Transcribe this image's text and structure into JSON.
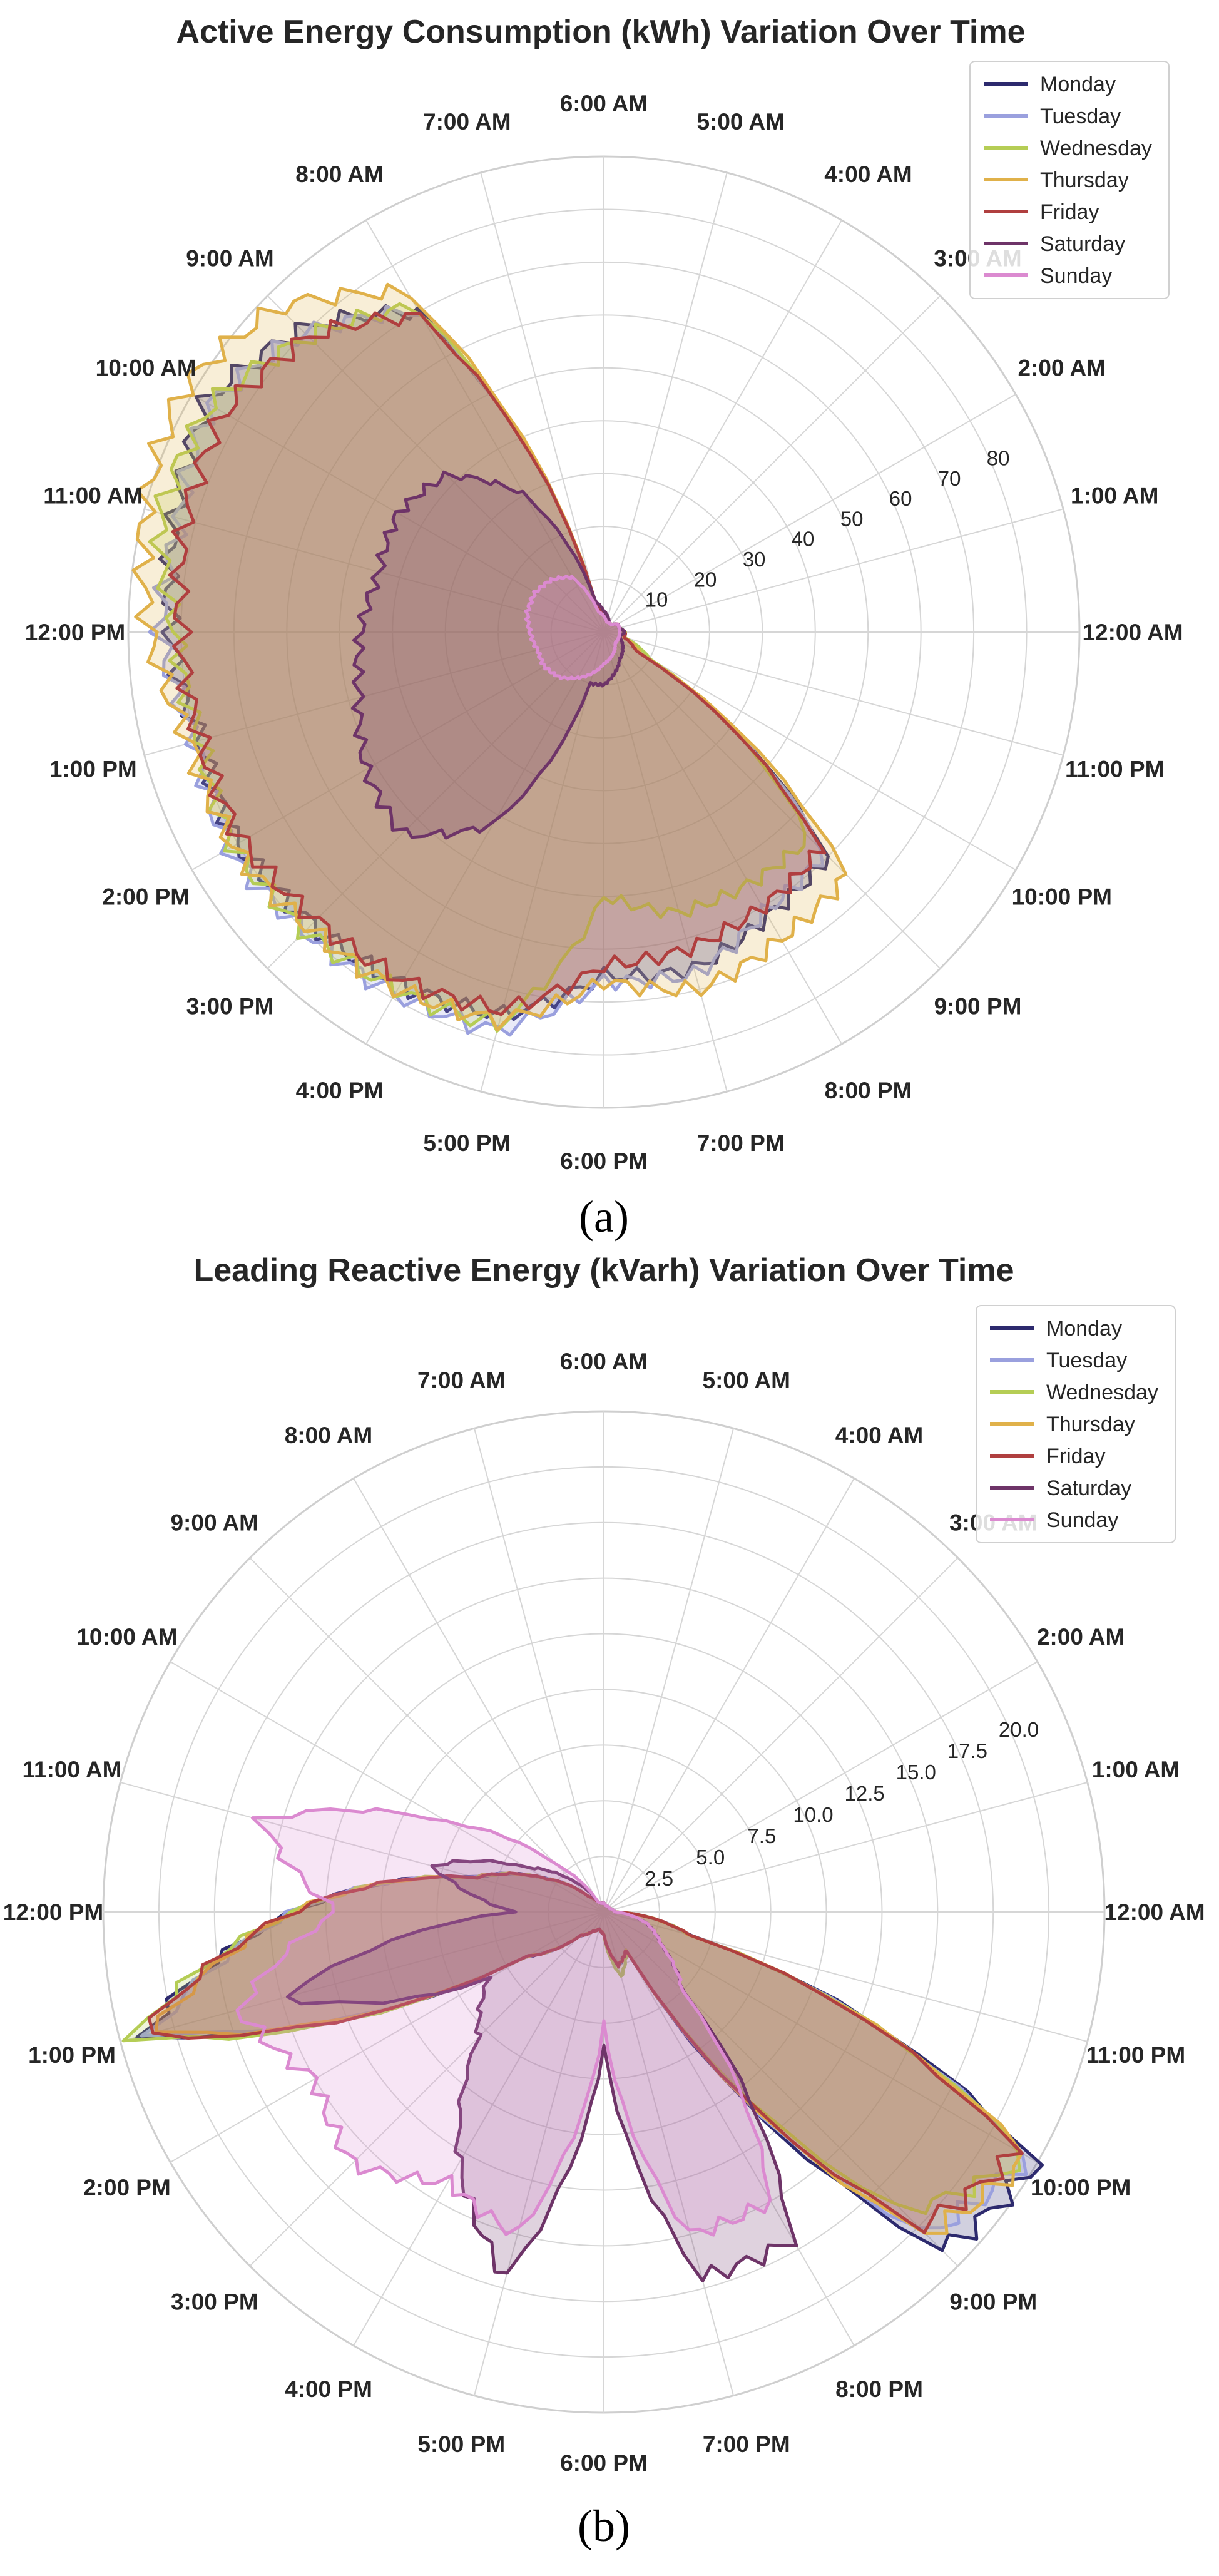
{
  "chart_data": [
    {
      "type": "polar-area",
      "title": "Active Energy Consumption (kWh) Variation Over Time",
      "caption": "(a)",
      "hour_labels": [
        "12:00 AM",
        "1:00 AM",
        "2:00 AM",
        "3:00 AM",
        "4:00 AM",
        "5:00 AM",
        "6:00 AM",
        "7:00 AM",
        "8:00 AM",
        "9:00 AM",
        "10:00 AM",
        "11:00 AM",
        "12:00 PM",
        "1:00 PM",
        "2:00 PM",
        "3:00 PM",
        "4:00 PM",
        "5:00 PM",
        "6:00 PM",
        "7:00 PM",
        "8:00 PM",
        "9:00 PM",
        "10:00 PM",
        "11:00 PM"
      ],
      "rmax": 90,
      "rticks": [
        10,
        20,
        30,
        40,
        50,
        60,
        70,
        80
      ],
      "rtick_labels": [
        "10",
        "20",
        "30",
        "40",
        "50",
        "60",
        "70",
        "80"
      ],
      "legend_position": "top-right",
      "series": [
        {
          "name": "Monday",
          "color": "#2d2a6e",
          "values": [
            4,
            3,
            3,
            2,
            2,
            2,
            3,
            5,
            70,
            81,
            87,
            84,
            82,
            79,
            80,
            78,
            77,
            75,
            65,
            66,
            62,
            60,
            8,
            4
          ]
        },
        {
          "name": "Tuesday",
          "color": "#9aa0de",
          "values": [
            4,
            3,
            3,
            2,
            2,
            2,
            3,
            5,
            70,
            80,
            86,
            83,
            84,
            80,
            82,
            80,
            79,
            78,
            66,
            67,
            61,
            59,
            8,
            4
          ]
        },
        {
          "name": "Wednesday",
          "color": "#b5cd55",
          "values": [
            4,
            3,
            3,
            2,
            2,
            2,
            3,
            5,
            71,
            79,
            86,
            87,
            81,
            79,
            81,
            80,
            78,
            77,
            50,
            55,
            55,
            55,
            10,
            4
          ]
        },
        {
          "name": "Thursday",
          "color": "#e0b14a",
          "values": [
            4,
            3,
            3,
            2,
            2,
            2,
            3,
            5,
            74,
            87,
            92,
            90,
            86,
            81,
            81,
            79,
            78,
            76,
            66,
            70,
            67,
            65,
            8,
            4
          ]
        },
        {
          "name": "Friday",
          "color": "#b03f3f",
          "values": [
            4,
            3,
            3,
            2,
            2,
            2,
            3,
            5,
            69,
            79,
            83,
            82,
            80,
            79,
            79,
            77,
            76,
            74,
            63,
            62,
            60,
            58,
            7,
            4
          ]
        },
        {
          "name": "Saturday",
          "color": "#6e3468",
          "values": [
            4,
            3,
            3,
            2,
            2,
            3,
            4,
            6,
            30,
            42,
            45,
            44,
            46,
            48,
            52,
            54,
            42,
            10,
            10,
            8,
            6,
            5,
            4,
            3
          ]
        },
        {
          "name": "Sunday",
          "color": "#db8ad0",
          "values": [
            3,
            3,
            3,
            2,
            2,
            2,
            3,
            4,
            12,
            14,
            15,
            15,
            14,
            13,
            13,
            12,
            10,
            8,
            6,
            5,
            4,
            3,
            3,
            3
          ]
        }
      ]
    },
    {
      "type": "polar-area",
      "title": "Leading Reactive Energy (kVarh) Variation Over Time",
      "caption": "(b)",
      "hour_labels": [
        "12:00 AM",
        "1:00 AM",
        "2:00 AM",
        "3:00 AM",
        "4:00 AM",
        "5:00 AM",
        "6:00 AM",
        "7:00 AM",
        "8:00 AM",
        "9:00 AM",
        "10:00 AM",
        "11:00 AM",
        "12:00 PM",
        "1:00 PM",
        "2:00 PM",
        "3:00 PM",
        "4:00 PM",
        "5:00 PM",
        "6:00 PM",
        "7:00 PM",
        "8:00 PM",
        "9:00 PM",
        "10:00 PM",
        "11:00 PM"
      ],
      "rmax": 22.5,
      "rticks": [
        2.5,
        5.0,
        7.5,
        10.0,
        12.5,
        15.0,
        17.5,
        20.0
      ],
      "rtick_labels": [
        "2.5",
        "5.0",
        "7.5",
        "10.0",
        "12.5",
        "15.0",
        "17.5",
        "20.0"
      ],
      "legend_position": "top-right",
      "series": [
        {
          "name": "Monday",
          "color": "#2d2a6e",
          "values": [
            0.5,
            0.4,
            0.3,
            0.3,
            0.3,
            0.3,
            0.4,
            0.4,
            0.5,
            1.0,
            3,
            6,
            14,
            21.5,
            4,
            1.5,
            1,
            0.8,
            1,
            2.5,
            2,
            21.5,
            22.5,
            4
          ]
        },
        {
          "name": "Tuesday",
          "color": "#9aa0de",
          "values": [
            0.5,
            0.4,
            0.3,
            0.3,
            0.3,
            0.3,
            0.4,
            0.4,
            0.5,
            1.0,
            3,
            6,
            14,
            21.0,
            4,
            1.5,
            1,
            0.8,
            1,
            2.5,
            2,
            20.5,
            22.0,
            4
          ]
        },
        {
          "name": "Wednesday",
          "color": "#b5cd55",
          "values": [
            0.5,
            0.4,
            0.3,
            0.3,
            0.3,
            0.3,
            0.4,
            0.4,
            0.5,
            1.0,
            3,
            6,
            14,
            22.0,
            4,
            1.5,
            1,
            0.8,
            1,
            3,
            2,
            19,
            22.0,
            4
          ]
        },
        {
          "name": "Thursday",
          "color": "#e0b14a",
          "values": [
            0.5,
            0.4,
            0.3,
            0.3,
            0.3,
            0.3,
            0.4,
            0.4,
            0.5,
            1.0,
            3,
            6,
            14,
            21.0,
            4,
            1.5,
            1,
            0.8,
            1,
            2.5,
            2,
            20.5,
            22.0,
            4
          ]
        },
        {
          "name": "Friday",
          "color": "#b03f3f",
          "values": [
            0.5,
            0.4,
            0.3,
            0.3,
            0.3,
            0.3,
            0.4,
            0.4,
            0.5,
            1.0,
            3,
            6,
            14,
            21.5,
            4,
            1.5,
            1,
            0.8,
            1,
            2.5,
            2,
            20,
            21.5,
            4
          ]
        },
        {
          "name": "Saturday",
          "color": "#6e3468",
          "values": [
            0.5,
            0.4,
            0.3,
            0.3,
            0.3,
            0.3,
            0.4,
            0.4,
            0.5,
            2,
            4,
            8,
            4,
            15,
            6,
            8,
            13,
            17,
            6,
            17,
            17,
            5,
            3,
            2
          ]
        },
        {
          "name": "Sunday",
          "color": "#db8ad0",
          "values": [
            0.5,
            0.4,
            0.3,
            0.3,
            0.3,
            0.3,
            0.4,
            0.4,
            0.5,
            3,
            8,
            16,
            12,
            17,
            15,
            16,
            14,
            15,
            5,
            15,
            15,
            5,
            3,
            2
          ]
        }
      ]
    }
  ]
}
